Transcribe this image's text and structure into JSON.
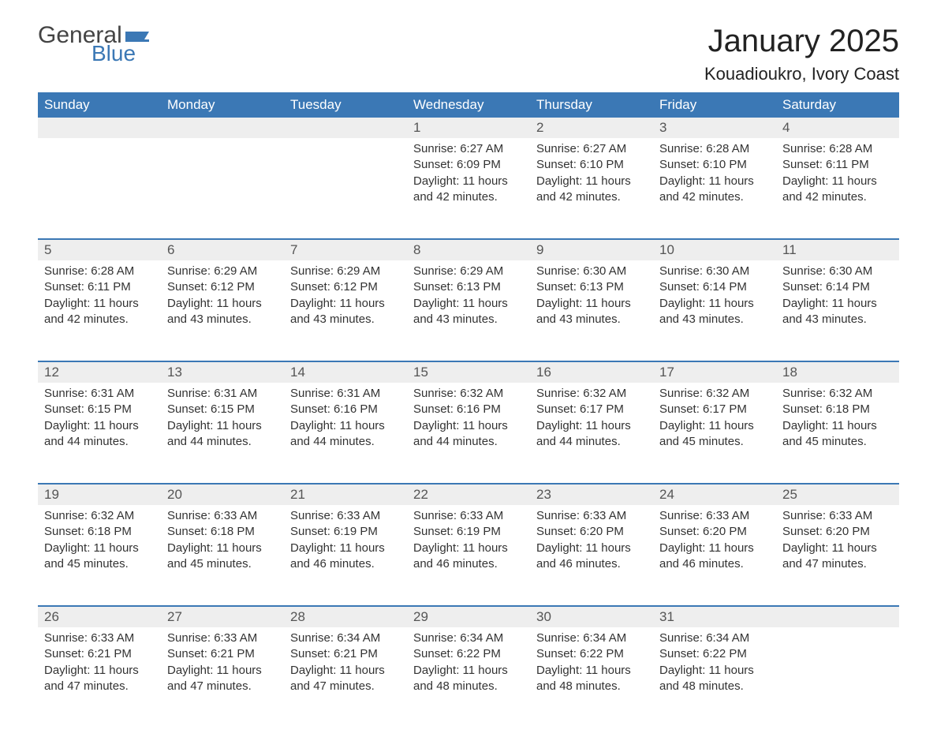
{
  "logo": {
    "general": "General",
    "blue": "Blue",
    "flag_color": "#3b78b5"
  },
  "title": "January 2025",
  "subtitle": "Kouadioukro, Ivory Coast",
  "colors": {
    "header_bg": "#3b78b5",
    "header_text": "#ffffff",
    "daynum_bg": "#eeeeee",
    "week_border": "#3b78b5",
    "body_text": "#333333",
    "page_bg": "#ffffff"
  },
  "weekdays": [
    "Sunday",
    "Monday",
    "Tuesday",
    "Wednesday",
    "Thursday",
    "Friday",
    "Saturday"
  ],
  "weeks": [
    [
      null,
      null,
      null,
      {
        "n": "1",
        "sunrise": "6:27 AM",
        "sunset": "6:09 PM",
        "daylight": "11 hours and 42 minutes."
      },
      {
        "n": "2",
        "sunrise": "6:27 AM",
        "sunset": "6:10 PM",
        "daylight": "11 hours and 42 minutes."
      },
      {
        "n": "3",
        "sunrise": "6:28 AM",
        "sunset": "6:10 PM",
        "daylight": "11 hours and 42 minutes."
      },
      {
        "n": "4",
        "sunrise": "6:28 AM",
        "sunset": "6:11 PM",
        "daylight": "11 hours and 42 minutes."
      }
    ],
    [
      {
        "n": "5",
        "sunrise": "6:28 AM",
        "sunset": "6:11 PM",
        "daylight": "11 hours and 42 minutes."
      },
      {
        "n": "6",
        "sunrise": "6:29 AM",
        "sunset": "6:12 PM",
        "daylight": "11 hours and 43 minutes."
      },
      {
        "n": "7",
        "sunrise": "6:29 AM",
        "sunset": "6:12 PM",
        "daylight": "11 hours and 43 minutes."
      },
      {
        "n": "8",
        "sunrise": "6:29 AM",
        "sunset": "6:13 PM",
        "daylight": "11 hours and 43 minutes."
      },
      {
        "n": "9",
        "sunrise": "6:30 AM",
        "sunset": "6:13 PM",
        "daylight": "11 hours and 43 minutes."
      },
      {
        "n": "10",
        "sunrise": "6:30 AM",
        "sunset": "6:14 PM",
        "daylight": "11 hours and 43 minutes."
      },
      {
        "n": "11",
        "sunrise": "6:30 AM",
        "sunset": "6:14 PM",
        "daylight": "11 hours and 43 minutes."
      }
    ],
    [
      {
        "n": "12",
        "sunrise": "6:31 AM",
        "sunset": "6:15 PM",
        "daylight": "11 hours and 44 minutes."
      },
      {
        "n": "13",
        "sunrise": "6:31 AM",
        "sunset": "6:15 PM",
        "daylight": "11 hours and 44 minutes."
      },
      {
        "n": "14",
        "sunrise": "6:31 AM",
        "sunset": "6:16 PM",
        "daylight": "11 hours and 44 minutes."
      },
      {
        "n": "15",
        "sunrise": "6:32 AM",
        "sunset": "6:16 PM",
        "daylight": "11 hours and 44 minutes."
      },
      {
        "n": "16",
        "sunrise": "6:32 AM",
        "sunset": "6:17 PM",
        "daylight": "11 hours and 44 minutes."
      },
      {
        "n": "17",
        "sunrise": "6:32 AM",
        "sunset": "6:17 PM",
        "daylight": "11 hours and 45 minutes."
      },
      {
        "n": "18",
        "sunrise": "6:32 AM",
        "sunset": "6:18 PM",
        "daylight": "11 hours and 45 minutes."
      }
    ],
    [
      {
        "n": "19",
        "sunrise": "6:32 AM",
        "sunset": "6:18 PM",
        "daylight": "11 hours and 45 minutes."
      },
      {
        "n": "20",
        "sunrise": "6:33 AM",
        "sunset": "6:18 PM",
        "daylight": "11 hours and 45 minutes."
      },
      {
        "n": "21",
        "sunrise": "6:33 AM",
        "sunset": "6:19 PM",
        "daylight": "11 hours and 46 minutes."
      },
      {
        "n": "22",
        "sunrise": "6:33 AM",
        "sunset": "6:19 PM",
        "daylight": "11 hours and 46 minutes."
      },
      {
        "n": "23",
        "sunrise": "6:33 AM",
        "sunset": "6:20 PM",
        "daylight": "11 hours and 46 minutes."
      },
      {
        "n": "24",
        "sunrise": "6:33 AM",
        "sunset": "6:20 PM",
        "daylight": "11 hours and 46 minutes."
      },
      {
        "n": "25",
        "sunrise": "6:33 AM",
        "sunset": "6:20 PM",
        "daylight": "11 hours and 47 minutes."
      }
    ],
    [
      {
        "n": "26",
        "sunrise": "6:33 AM",
        "sunset": "6:21 PM",
        "daylight": "11 hours and 47 minutes."
      },
      {
        "n": "27",
        "sunrise": "6:33 AM",
        "sunset": "6:21 PM",
        "daylight": "11 hours and 47 minutes."
      },
      {
        "n": "28",
        "sunrise": "6:34 AM",
        "sunset": "6:21 PM",
        "daylight": "11 hours and 47 minutes."
      },
      {
        "n": "29",
        "sunrise": "6:34 AM",
        "sunset": "6:22 PM",
        "daylight": "11 hours and 48 minutes."
      },
      {
        "n": "30",
        "sunrise": "6:34 AM",
        "sunset": "6:22 PM",
        "daylight": "11 hours and 48 minutes."
      },
      {
        "n": "31",
        "sunrise": "6:34 AM",
        "sunset": "6:22 PM",
        "daylight": "11 hours and 48 minutes."
      },
      null
    ]
  ],
  "labels": {
    "sunrise": "Sunrise: ",
    "sunset": "Sunset: ",
    "daylight": "Daylight: "
  }
}
